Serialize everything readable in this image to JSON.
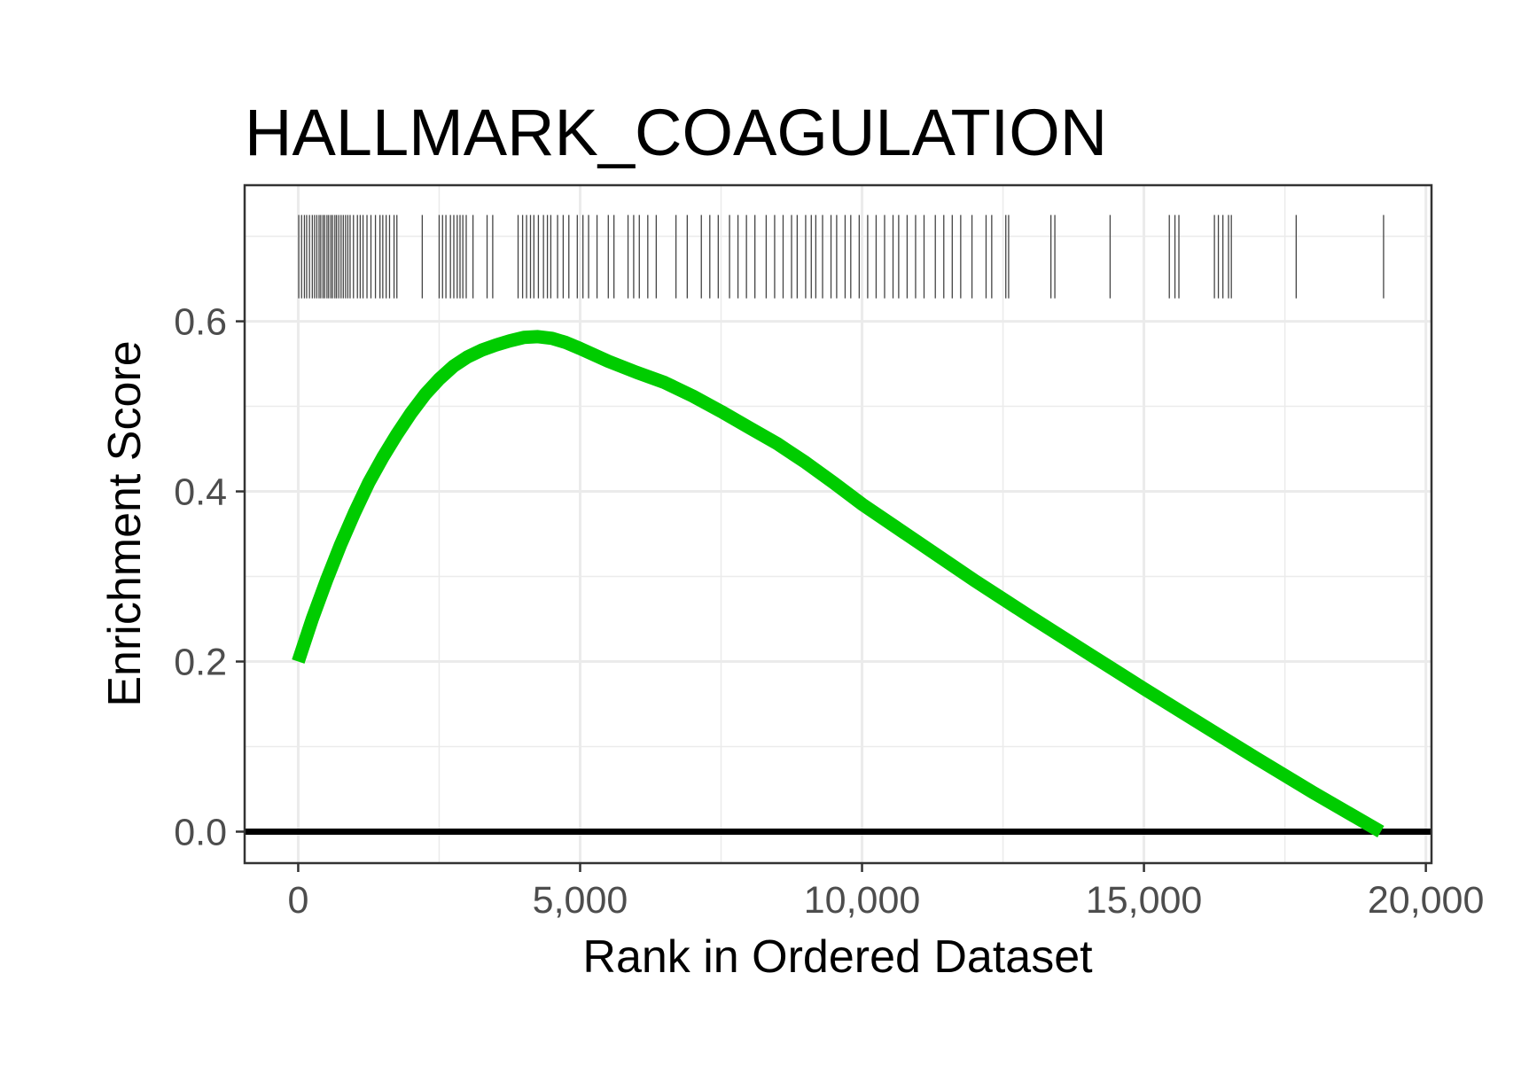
{
  "chart_data": {
    "type": "line",
    "title": "HALLMARK_COAGULATION",
    "xlabel": "Rank in Ordered Dataset",
    "ylabel": "Enrichment Score",
    "xlim": [
      -950,
      20100
    ],
    "ylim": [
      -0.037,
      0.76
    ],
    "x_ticks": [
      0,
      5000,
      10000,
      15000,
      20000
    ],
    "x_tick_labels": [
      "0",
      "5,000",
      "10,000",
      "15,000",
      "20,000"
    ],
    "y_ticks": [
      0.0,
      0.2,
      0.4,
      0.6
    ],
    "y_tick_labels": [
      "0.0",
      "0.2",
      "0.4",
      "0.6"
    ],
    "x_minor_ticks": [
      2500,
      7500,
      12500,
      17500
    ],
    "y_minor_ticks": [
      0.1,
      0.3,
      0.5,
      0.7
    ],
    "grid": true,
    "baseline": 0,
    "series": [
      {
        "name": "Enrichment Score",
        "color": "#00cc00",
        "x": [
          0,
          250,
          500,
          750,
          1000,
          1250,
          1500,
          1750,
          2000,
          2250,
          2500,
          2750,
          3000,
          3250,
          3500,
          3750,
          4000,
          4250,
          4500,
          4750,
          5000,
          5500,
          6000,
          6500,
          7000,
          7500,
          8000,
          8500,
          9000,
          9500,
          10000,
          11000,
          12000,
          13000,
          14000,
          15000,
          16000,
          17000,
          18000,
          19200
        ],
        "values": [
          0.2,
          0.25,
          0.295,
          0.337,
          0.375,
          0.41,
          0.44,
          0.467,
          0.492,
          0.514,
          0.532,
          0.547,
          0.558,
          0.566,
          0.572,
          0.577,
          0.581,
          0.582,
          0.58,
          0.575,
          0.568,
          0.553,
          0.54,
          0.528,
          0.512,
          0.494,
          0.475,
          0.456,
          0.434,
          0.41,
          0.385,
          0.34,
          0.295,
          0.252,
          0.21,
          0.168,
          0.127,
          0.086,
          0.046,
          0.0
        ]
      }
    ],
    "gene_hits": [
      10,
      60,
      110,
      150,
      200,
      250,
      290,
      330,
      370,
      400,
      440,
      470,
      510,
      540,
      580,
      610,
      650,
      680,
      720,
      760,
      800,
      840,
      880,
      920,
      980,
      1050,
      1100,
      1150,
      1220,
      1290,
      1370,
      1450,
      1500,
      1560,
      1620,
      1700,
      1750,
      2200,
      2500,
      2560,
      2620,
      2700,
      2760,
      2820,
      2870,
      2920,
      2980,
      3100,
      3350,
      3450,
      3900,
      3980,
      4050,
      4120,
      4180,
      4260,
      4350,
      4420,
      4480,
      4600,
      4700,
      4800,
      4950,
      5050,
      5150,
      5300,
      5500,
      5600,
      5850,
      5950,
      6050,
      6200,
      6350,
      6700,
      6900,
      7150,
      7300,
      7450,
      7650,
      7800,
      7950,
      8100,
      8300,
      8450,
      8600,
      8750,
      8850,
      9000,
      9100,
      9180,
      9300,
      9450,
      9550,
      9700,
      9800,
      9950,
      10100,
      10250,
      10400,
      10550,
      10650,
      10800,
      10950,
      11100,
      11300,
      11450,
      11600,
      11750,
      11950,
      12200,
      12300,
      12550,
      12600,
      13350,
      13420,
      14400,
      15450,
      15550,
      15620,
      16250,
      16320,
      16400,
      16500,
      16550,
      17700,
      19250
    ],
    "colors": {
      "curve": "#00cc00",
      "baseline": "#000000",
      "gene_hit": "#444444",
      "grid": "#ebebeb",
      "panel_border": "#333333"
    }
  }
}
